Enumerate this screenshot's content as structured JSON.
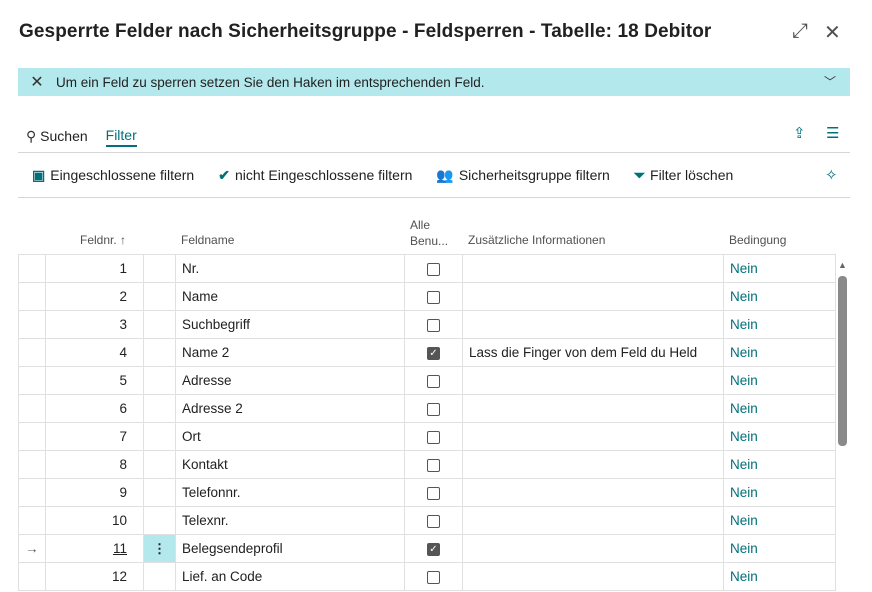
{
  "title": "Gesperrte Felder nach Sicherheitsgruppe - Feldsperren - Tabelle: 18 Debitor",
  "banner": {
    "text": "Um ein Feld zu sperren setzen Sie den Haken im entsprechenden Feld."
  },
  "actions": {
    "search": "Suchen",
    "filter": "Filter"
  },
  "toolbar": [
    "Eingeschlossene filtern",
    "nicht Eingeschlossene filtern",
    "Sicherheitsgruppe filtern",
    "Filter löschen"
  ],
  "columns": {
    "feldnr": "Feldnr. ↑",
    "feldname": "Feldname",
    "alle1": "Alle",
    "alle2": "Benu...",
    "info": "Zusätzliche Informationen",
    "bedingung": "Bedingung"
  },
  "rows": [
    {
      "nr": "1",
      "name": "Nr.",
      "checked": false,
      "info": "",
      "cond": "Nein"
    },
    {
      "nr": "2",
      "name": "Name",
      "checked": false,
      "info": "",
      "cond": "Nein"
    },
    {
      "nr": "3",
      "name": "Suchbegriff",
      "checked": false,
      "info": "",
      "cond": "Nein"
    },
    {
      "nr": "4",
      "name": "Name 2",
      "checked": true,
      "info": "Lass die Finger von dem Feld du Held",
      "cond": "Nein"
    },
    {
      "nr": "5",
      "name": "Adresse",
      "checked": false,
      "info": "",
      "cond": "Nein"
    },
    {
      "nr": "6",
      "name": "Adresse 2",
      "checked": false,
      "info": "",
      "cond": "Nein"
    },
    {
      "nr": "7",
      "name": "Ort",
      "checked": false,
      "info": "",
      "cond": "Nein"
    },
    {
      "nr": "8",
      "name": "Kontakt",
      "checked": false,
      "info": "",
      "cond": "Nein"
    },
    {
      "nr": "9",
      "name": "Telefonnr.",
      "checked": false,
      "info": "",
      "cond": "Nein"
    },
    {
      "nr": "10",
      "name": "Telexnr.",
      "checked": false,
      "info": "",
      "cond": "Nein"
    },
    {
      "nr": "11",
      "name": "Belegsendeprofil",
      "checked": true,
      "info": "",
      "cond": "Nein",
      "selected": true
    },
    {
      "nr": "12",
      "name": "Lief. an Code",
      "checked": false,
      "info": "",
      "cond": "Nein"
    }
  ]
}
